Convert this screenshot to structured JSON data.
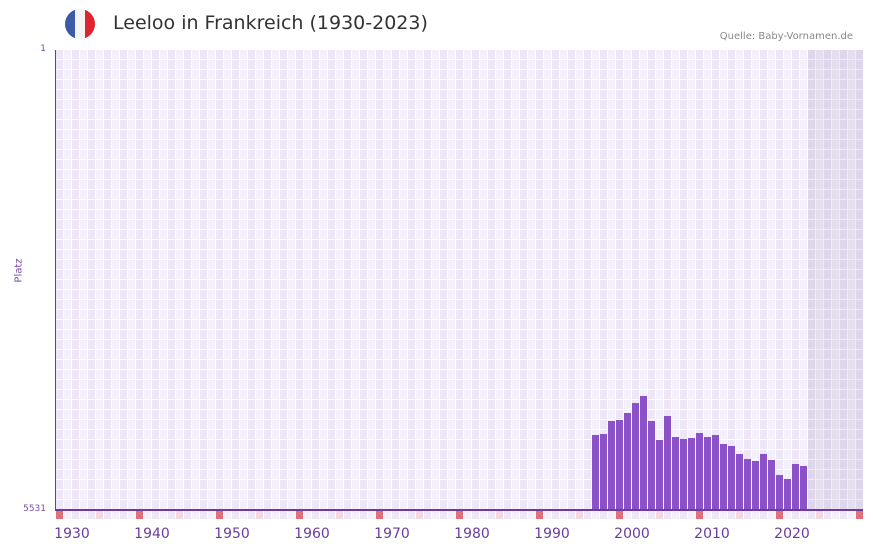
{
  "header": {
    "title": "Leeloo in Frankreich (1930-2023)",
    "source": "Quelle: Baby-Vornamen.de",
    "flag_colors": [
      "#3b5aa8",
      "#f4f4f4",
      "#e0242f"
    ]
  },
  "colors": {
    "bar": "#8a52c6",
    "axis": "#6a3d9a",
    "decade_tick": "#e07079",
    "half_decade_tick": "#f3d8e0"
  },
  "chart_data": {
    "type": "bar",
    "title": "Leeloo in Frankreich (1930-2023)",
    "xlabel": "",
    "ylabel": "Platz",
    "y_inverted": true,
    "ylim": [
      1,
      5531
    ],
    "xlim": [
      1930,
      2030
    ],
    "y_ticks": [
      "1",
      "5531"
    ],
    "x_ticks": [
      "1930",
      "1940",
      "1950",
      "1960",
      "1970",
      "1980",
      "1990",
      "2000",
      "2010",
      "2020"
    ],
    "grid": true,
    "categories": [
      1997,
      1998,
      1999,
      2000,
      2001,
      2002,
      2003,
      2004,
      2005,
      2006,
      2007,
      2008,
      2009,
      2010,
      2011,
      2012,
      2013,
      2014,
      2015,
      2016,
      2017,
      2018,
      2019,
      2020,
      2021,
      2022,
      2023
    ],
    "values": [
      4629,
      4617,
      4461,
      4449,
      4365,
      4244,
      4160,
      4461,
      4690,
      4401,
      4653,
      4677,
      4665,
      4605,
      4653,
      4629,
      4738,
      4762,
      4858,
      4918,
      4942,
      4858,
      4930,
      5111,
      5159,
      4978,
      5002
    ]
  },
  "axis": {
    "y_top": "1",
    "y_bottom": "5531",
    "y_title": "Platz",
    "x_labels": [
      "1930",
      "1940",
      "1950",
      "1960",
      "1970",
      "1980",
      "1990",
      "2000",
      "2010",
      "2020"
    ]
  }
}
